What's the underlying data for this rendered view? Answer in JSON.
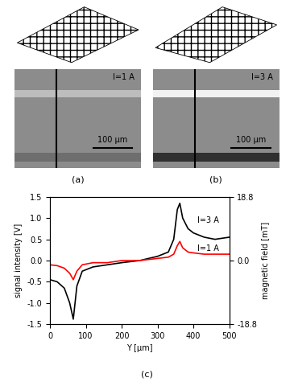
{
  "images": [
    {
      "caption": "(a)",
      "annotation": "I=1 A",
      "scale_bar": "100 μm"
    },
    {
      "caption": "(b)",
      "annotation": "I=3 A",
      "scale_bar": "100 μm"
    }
  ],
  "chart_data": {
    "type": "line",
    "caption": "(c)",
    "x_label": "Y [μm]",
    "y_label": "signal intensity [V]",
    "y2_label": "magnetic field [mT]",
    "x": [
      0,
      20,
      40,
      55,
      65,
      75,
      90,
      120,
      160,
      200,
      250,
      300,
      330,
      345,
      355,
      362,
      370,
      385,
      400,
      430,
      460,
      500
    ],
    "series": [
      {
        "name": "I=3 A",
        "color": "#000000",
        "values": [
          -0.45,
          -0.5,
          -0.65,
          -1.0,
          -1.38,
          -0.6,
          -0.25,
          -0.15,
          -0.1,
          -0.05,
          0.0,
          0.1,
          0.2,
          0.5,
          1.2,
          1.35,
          1.0,
          0.75,
          0.65,
          0.55,
          0.5,
          0.55
        ]
      },
      {
        "name": "I=1 A",
        "color": "#ff0000",
        "values": [
          -0.1,
          -0.12,
          -0.18,
          -0.3,
          -0.45,
          -0.25,
          -0.1,
          -0.05,
          -0.05,
          0.0,
          0.0,
          0.05,
          0.08,
          0.15,
          0.35,
          0.45,
          0.3,
          0.2,
          0.18,
          0.15,
          0.15,
          0.15
        ]
      }
    ],
    "annotations": [
      {
        "text": "I=3 A",
        "x": 410,
        "y": 0.95
      },
      {
        "text": "I=1 A",
        "x": 410,
        "y": 0.28
      }
    ],
    "xlim": [
      0,
      500
    ],
    "xticks": [
      0,
      100,
      200,
      300,
      400,
      500
    ],
    "ylim": [
      -1.5,
      1.5
    ],
    "yticks": [
      -1.5,
      {
        "value": -1.0,
        "label": "-1.0"
      },
      -0.5,
      {
        "value": 0.0,
        "label": "0.0"
      },
      0.5,
      {
        "value": 1.0,
        "label": "1.0"
      },
      1.5
    ],
    "y2lim": [
      -18.8,
      18.8
    ],
    "y2ticks": [
      -18.8,
      {
        "value": 0.0,
        "label": "0.0"
      },
      18.8
    ]
  }
}
